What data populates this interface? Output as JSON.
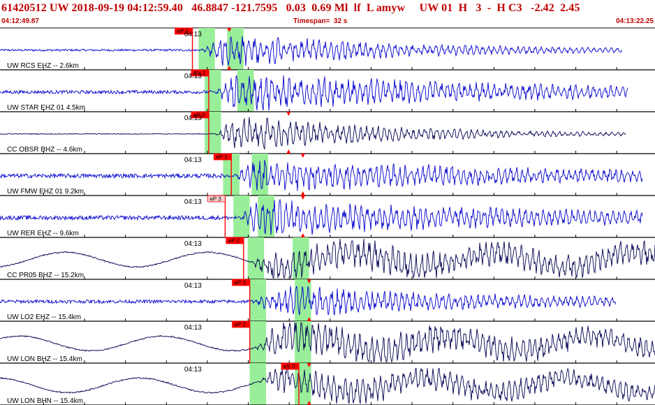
{
  "header": {
    "title": "61420512 UW 2018-09-19 04:12:59.40   46.8847 -121.7595   0.03  0.69 Ml  lf  L amyw     UW 01  H   3  -  H C3   -2.42  2.45",
    "start_time": "04:12:49.87",
    "timespan": "Timespan=  32 s",
    "end_time": "04:13:22.25"
  },
  "colors": {
    "title": "#c00000",
    "wave_blue": "#0000cc",
    "wave_navy": "#000050",
    "pick": "#ff0000",
    "highlight": "#99ee99",
    "divider": "#000000"
  },
  "chart_data": {
    "type": "waveform",
    "time_axis": {
      "start": "04:12:49.87",
      "end": "04:13:22.25",
      "span_s": 32,
      "minute_label": "04:13"
    },
    "traces": [
      {
        "label": "UW RCS EHZ -- 2.6km",
        "color": "blue",
        "onset_s": 9.8,
        "amp": 0.55,
        "decay": 0.1,
        "noise": 0.05,
        "end_s": 30.4,
        "picks": [
          {
            "label": "eP 2",
            "t_s": 9.4,
            "tag_box": "solid"
          }
        ],
        "s_pick_s": 11.2,
        "windows": [
          [
            9.7,
            10.5
          ],
          [
            11.1,
            11.9
          ]
        ],
        "minute_tick": true
      },
      {
        "label": "UW STAR EHZ 01 4.5km",
        "color": "blue",
        "onset_s": 10.4,
        "amp": 0.6,
        "decay": 0.06,
        "noise": 0.08,
        "end_s": 30.7,
        "picks": [
          {
            "label": "iPc 1",
            "t_s": 10.2,
            "tag_box": "solid"
          }
        ],
        "windows": [
          [
            10.0,
            10.8
          ],
          [
            11.6,
            12.4
          ]
        ],
        "minute_tick": true
      },
      {
        "label": "CC OBSR BHZ -- 4.6km",
        "color": "navy",
        "onset_s": 10.5,
        "amp": 0.6,
        "decay": 0.12,
        "noise": 0.02,
        "end_s": 30.6,
        "picks": [
          {
            "label": "eP 3",
            "t_s": 10.2,
            "tag_box": "solid"
          }
        ],
        "s_pick_s": 14.1,
        "windows": [
          [
            10.0,
            10.8
          ]
        ],
        "minute_tick": true
      },
      {
        "label": "UW FMW EHZ 01 9.2km",
        "color": "blue",
        "onset_s": 11.3,
        "amp": 0.5,
        "decay": 0.05,
        "noise": 0.1,
        "end_s": 31.4,
        "picks": [
          {
            "label": "eP 3",
            "t_s": 11.3,
            "tag_box": "solid"
          }
        ],
        "s_pick_s": 14.8,
        "windows": [
          [
            10.9,
            11.7
          ],
          [
            12.3,
            13.1
          ]
        ],
        "minute_tick": true
      },
      {
        "label": "UW RER EHZ -- 9.6km",
        "color": "blue",
        "onset_s": 11.5,
        "amp": 0.55,
        "decay": 0.05,
        "noise": 0.1,
        "end_s": 31.4,
        "picks": [
          {
            "label": "eP 3",
            "t_s": 11.0,
            "tag_box": "outline"
          }
        ],
        "s_pick_s": 14.8,
        "windows": [
          [
            11.4,
            12.2
          ],
          [
            12.6,
            13.4
          ]
        ],
        "minute_tick": true
      },
      {
        "label": "CC PR05 BHZ -- 15.2km",
        "color": "navy",
        "onset_s": 12.2,
        "amp": 0.5,
        "decay": 0.02,
        "noise": 0.03,
        "end_s": 32.3,
        "longperiod": true,
        "picks": [
          {
            "label": "eP 2",
            "t_s": 11.9,
            "tag_box": "solid"
          }
        ],
        "windows": [
          [
            12.1,
            12.9
          ],
          [
            14.3,
            15.1
          ]
        ],
        "minute_tick": true
      },
      {
        "label": "UW LO2 EHZ -- 15.4km",
        "color": "blue",
        "onset_s": 12.4,
        "amp": 0.5,
        "decay": 0.07,
        "noise": 0.08,
        "end_s": 30.1,
        "picks": [
          {
            "label": "eP 3",
            "t_s": 12.2,
            "tag_box": "solid"
          }
        ],
        "s_pick_s": 15.1,
        "windows": [
          [
            12.2,
            13.0
          ],
          [
            14.4,
            15.2
          ]
        ],
        "minute_tick": true
      },
      {
        "label": "UW LON BHZ -- 15.4km",
        "color": "navy",
        "onset_s": 12.4,
        "amp": 0.55,
        "decay": 0.03,
        "noise": 0.03,
        "end_s": 32.3,
        "longperiod": true,
        "picks": [
          {
            "label": "eP 2",
            "t_s": 12.2,
            "tag_box": "solid"
          }
        ],
        "windows": [
          [
            12.2,
            13.0
          ],
          [
            14.4,
            15.2
          ]
        ],
        "minute_tick": true
      },
      {
        "label": "UW LON BHN -- 15.4km",
        "color": "navy",
        "onset_s": 12.6,
        "amp": 0.45,
        "decay": 0.03,
        "noise": 0.03,
        "end_s": 32.3,
        "longperiod": true,
        "picks": [
          {
            "label": "eS 3",
            "t_s": 14.6,
            "tag_box": "solid"
          }
        ],
        "s_pick_s": 15.1,
        "windows": [
          [
            12.2,
            13.0
          ],
          [
            14.4,
            15.2
          ]
        ],
        "minute_tick": true
      }
    ]
  }
}
